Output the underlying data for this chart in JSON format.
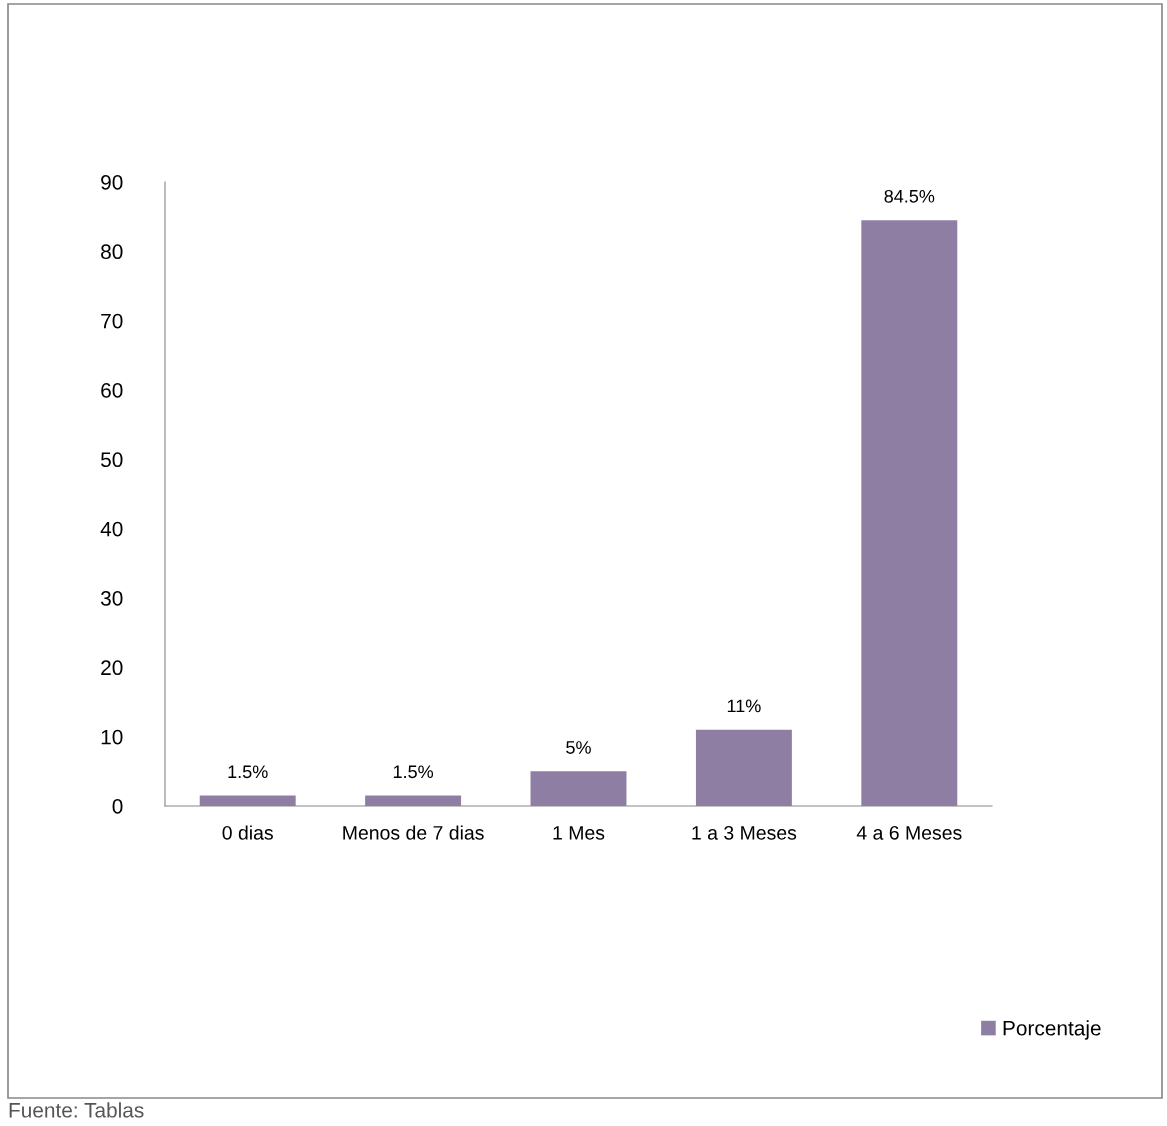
{
  "chart_data": {
    "type": "bar",
    "categories": [
      "0 dias",
      "Menos de 7 dias",
      "1 Mes",
      "1 a 3 Meses",
      "4 a 6 Meses"
    ],
    "series": [
      {
        "name": "Porcentaje",
        "color": "#8e7ea3",
        "values": [
          1.5,
          1.5,
          5,
          11,
          84.5
        ],
        "value_labels": [
          "1.5%",
          "1.5%",
          "5%",
          "11%",
          "84.5%"
        ]
      }
    ],
    "ylim": [
      0,
      90
    ],
    "yticks": [
      0,
      10,
      20,
      30,
      40,
      50,
      60,
      70,
      80,
      90
    ],
    "grid": false,
    "legend": "bottom right",
    "annotations": [
      "Fuente: Tablas"
    ]
  }
}
